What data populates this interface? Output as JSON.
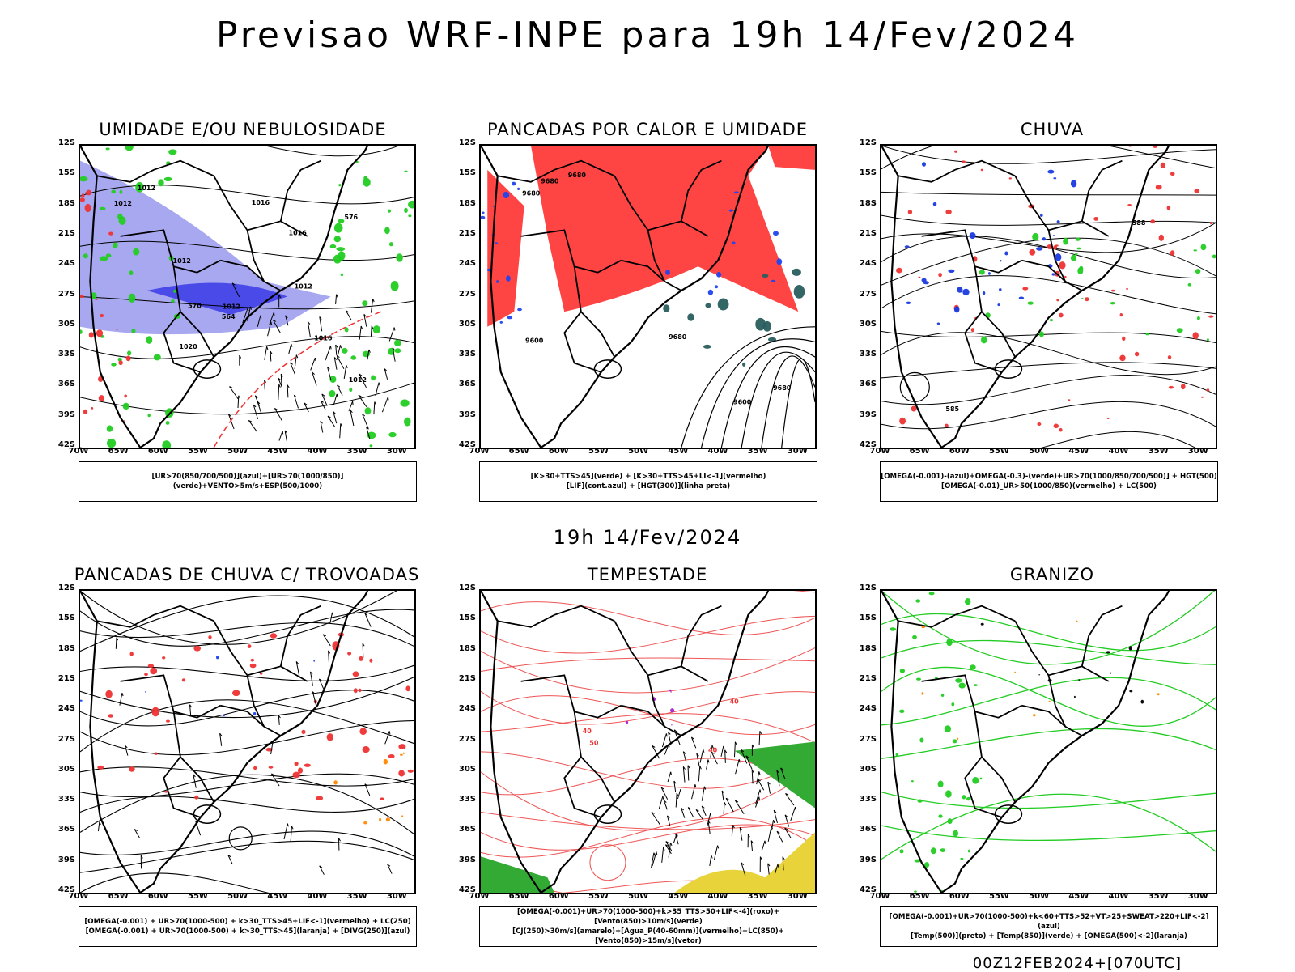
{
  "main_title": "Previsao WRF-INPE  para 19h 14/Fev/2024",
  "mid_title": "19h 14/Fev/2024",
  "footer": "00Z12FEB2024+[070UTC]",
  "lat_ticks": [
    "12S",
    "15S",
    "18S",
    "21S",
    "24S",
    "27S",
    "30S",
    "33S",
    "36S",
    "39S",
    "42S"
  ],
  "lon_ticks": [
    "70W",
    "65W",
    "60W",
    "55W",
    "50W",
    "45W",
    "40W",
    "35W",
    "30W"
  ],
  "panels": [
    {
      "title": "UMIDADE E/OU NEBULOSIDADE",
      "legend": [
        "[UR>70(850/700/500)](azul)+[UR>70(1000/850)](verde)+VENTO>5m/s+ESP(500/1000)"
      ],
      "contour_labels": [
        "1012",
        "1012",
        "1012",
        "1016",
        "1012",
        "1016",
        "1020",
        "1016",
        "576",
        "570",
        "564",
        "1012",
        "1012"
      ]
    },
    {
      "title": "PANCADAS POR CALOR E UMIDADE",
      "legend": [
        "[K>30+TTS>45](verde) + [K>30+TTS>45+LI<-1](vermelho)",
        "[LIF](cont.azul) + [HGT(300)](linha preta)"
      ],
      "contour_labels": [
        "9680",
        "9680",
        "9680",
        "9680",
        "9600",
        "9680",
        "9600"
      ]
    },
    {
      "title": "CHUVA",
      "legend": [
        "[OMEGA(-0.001)-(azul)+OMEGA(-0.3)-(verde)+UR>70(1000/850/700/500)] + HGT(500)",
        "[OMEGA(-0.01)_UR>50(1000/850)(vermelho) + LC(500)"
      ],
      "contour_labels": [
        "588",
        "585"
      ]
    },
    {
      "title": "PANCADAS DE CHUVA C/ TROVOADAS",
      "legend": [
        "[OMEGA(-0.001) + UR>70(1000-500) + k>30_TTS>45+LIF<-1](vermelho) + LC(250)",
        "[OMEGA(-0.001) + UR>70(1000-500) + k>30_TTS>45](laranja) + [DIVG(250)](azul)"
      ],
      "contour_labels": []
    },
    {
      "title": "TEMPESTADE",
      "legend": [
        "[OMEGA(-0.001)+UR>70(1000-500)+k>35_TTS>50+LIF<-4](roxo)+[Vento(850)>10m/s](verde)",
        "[CJ(250)>30m/s](amarelo)+[Agua_P(40-60mm)](vermelho)+LC(850)+[Vento(850)>15m/s](vetor)"
      ],
      "contour_labels": [
        "40",
        "40",
        "50",
        "40"
      ]
    },
    {
      "title": "GRANIZO",
      "legend": [
        "[OMEGA(-0.001)+UR>70(1000-500)+k<60+TTS>52+VT>25+SWEAT>220+LIF<-2](azul)",
        "[Temp(500)](preto) + [Temp(850)](verde) + [OMEGA(500)<-2](laranja)"
      ],
      "contour_labels": []
    }
  ]
}
